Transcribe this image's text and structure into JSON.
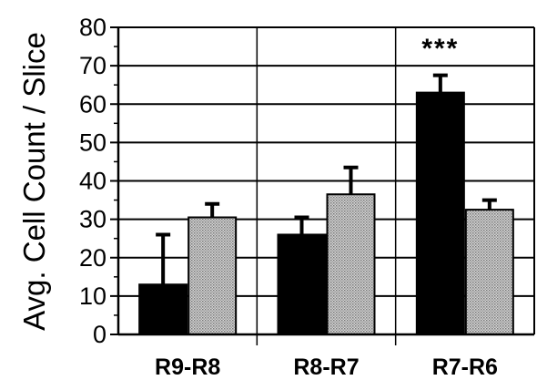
{
  "chart_data": {
    "type": "bar",
    "categories": [
      "R9-R8",
      "R8-R7",
      "R7-R6"
    ],
    "series": [
      {
        "values": [
          13,
          26,
          63
        ],
        "errors": [
          13,
          4.5,
          4.5
        ],
        "color": "#000000"
      },
      {
        "values": [
          30.5,
          36.5,
          32.5
        ],
        "errors": [
          3.5,
          7,
          2.5
        ],
        "color": "#b8b8b8"
      }
    ],
    "ylabel": "Avg. Cell Count / Slice",
    "yticks": [
      0,
      10,
      20,
      30,
      40,
      50,
      60,
      70,
      80
    ],
    "ylim": [
      0,
      80
    ],
    "grid": true,
    "annotations": [
      {
        "text": "***",
        "category": "R7-R6"
      }
    ]
  }
}
